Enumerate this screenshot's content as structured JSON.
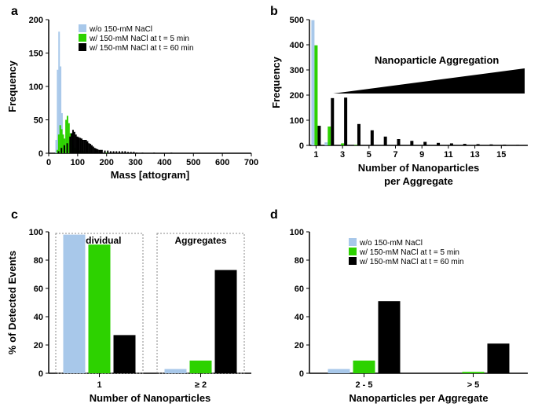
{
  "colors": {
    "series_noNaCl": "#a8c8ea",
    "series_5min": "#2dd200",
    "series_60min": "#000000",
    "axis": "#000000",
    "bg": "#ffffff"
  },
  "legend": {
    "noNaCl": "w/o 150-mM NaCl",
    "t5": "w/ 150-mM NaCl at t = 5 min",
    "t60": "w/ 150-mM NaCl at t = 60 min"
  },
  "panel_a": {
    "label": "a",
    "xlabel": "Mass [attogram]",
    "ylabel": "Frequency",
    "xlim": [
      0,
      700
    ],
    "ylim": [
      0,
      200
    ],
    "xticks": [
      0,
      100,
      200,
      300,
      400,
      500,
      600,
      700
    ],
    "yticks": [
      0,
      50,
      100,
      150,
      200
    ],
    "series": {
      "noNaCl": [
        {
          "x": 30,
          "y": 20
        },
        {
          "x": 35,
          "y": 125
        },
        {
          "x": 40,
          "y": 182
        },
        {
          "x": 45,
          "y": 130
        },
        {
          "x": 50,
          "y": 60
        },
        {
          "x": 55,
          "y": 22
        },
        {
          "x": 60,
          "y": 10
        },
        {
          "x": 65,
          "y": 5
        },
        {
          "x": 70,
          "y": 3
        },
        {
          "x": 75,
          "y": 2
        },
        {
          "x": 80,
          "y": 2
        },
        {
          "x": 85,
          "y": 1
        },
        {
          "x": 90,
          "y": 1
        }
      ],
      "t5": [
        {
          "x": 30,
          "y": 5
        },
        {
          "x": 35,
          "y": 28
        },
        {
          "x": 40,
          "y": 42
        },
        {
          "x": 45,
          "y": 36
        },
        {
          "x": 50,
          "y": 28
        },
        {
          "x": 55,
          "y": 22
        },
        {
          "x": 60,
          "y": 50
        },
        {
          "x": 65,
          "y": 56
        },
        {
          "x": 70,
          "y": 45
        },
        {
          "x": 75,
          "y": 30
        },
        {
          "x": 80,
          "y": 18
        },
        {
          "x": 85,
          "y": 12
        },
        {
          "x": 90,
          "y": 8
        },
        {
          "x": 95,
          "y": 6
        },
        {
          "x": 100,
          "y": 4
        },
        {
          "x": 105,
          "y": 4
        },
        {
          "x": 110,
          "y": 3
        },
        {
          "x": 120,
          "y": 3
        },
        {
          "x": 130,
          "y": 2
        },
        {
          "x": 140,
          "y": 2
        },
        {
          "x": 160,
          "y": 1
        },
        {
          "x": 180,
          "y": 1
        },
        {
          "x": 200,
          "y": 1
        }
      ],
      "t60": [
        {
          "x": 30,
          "y": 3
        },
        {
          "x": 40,
          "y": 8
        },
        {
          "x": 50,
          "y": 12
        },
        {
          "x": 60,
          "y": 15
        },
        {
          "x": 70,
          "y": 25
        },
        {
          "x": 75,
          "y": 30
        },
        {
          "x": 80,
          "y": 35
        },
        {
          "x": 85,
          "y": 32
        },
        {
          "x": 90,
          "y": 28
        },
        {
          "x": 95,
          "y": 25
        },
        {
          "x": 100,
          "y": 24
        },
        {
          "x": 105,
          "y": 23
        },
        {
          "x": 110,
          "y": 22
        },
        {
          "x": 115,
          "y": 20
        },
        {
          "x": 120,
          "y": 20
        },
        {
          "x": 125,
          "y": 20
        },
        {
          "x": 130,
          "y": 18
        },
        {
          "x": 135,
          "y": 15
        },
        {
          "x": 140,
          "y": 14
        },
        {
          "x": 145,
          "y": 12
        },
        {
          "x": 150,
          "y": 10
        },
        {
          "x": 155,
          "y": 8
        },
        {
          "x": 160,
          "y": 7
        },
        {
          "x": 165,
          "y": 6
        },
        {
          "x": 170,
          "y": 5
        },
        {
          "x": 175,
          "y": 5
        },
        {
          "x": 180,
          "y": 5
        },
        {
          "x": 190,
          "y": 4
        },
        {
          "x": 200,
          "y": 4
        },
        {
          "x": 210,
          "y": 3
        },
        {
          "x": 220,
          "y": 3
        },
        {
          "x": 230,
          "y": 3
        },
        {
          "x": 240,
          "y": 3
        },
        {
          "x": 250,
          "y": 3
        },
        {
          "x": 260,
          "y": 3
        },
        {
          "x": 270,
          "y": 2
        },
        {
          "x": 280,
          "y": 2
        },
        {
          "x": 290,
          "y": 2
        },
        {
          "x": 300,
          "y": 1
        },
        {
          "x": 320,
          "y": 1
        },
        {
          "x": 360,
          "y": 1
        },
        {
          "x": 420,
          "y": 1
        }
      ]
    }
  },
  "panel_b": {
    "label": "b",
    "xlabel": "Number of Nanoparticles",
    "xlabel2": "per Aggregate",
    "ylabel": "Frequency",
    "xlim": [
      0.5,
      17
    ],
    "ylim": [
      0,
      500
    ],
    "xticks": [
      1,
      3,
      5,
      7,
      9,
      11,
      13,
      15
    ],
    "yticks": [
      0,
      100,
      200,
      300,
      400,
      500
    ],
    "annotation": "Nanoparticle Aggregation",
    "series": {
      "noNaCl": [
        {
          "x": 1,
          "y": 498
        },
        {
          "x": 2,
          "y": 12
        }
      ],
      "t5": [
        {
          "x": 1,
          "y": 398
        },
        {
          "x": 2,
          "y": 75
        },
        {
          "x": 3,
          "y": 8
        },
        {
          "x": 4,
          "y": 2
        }
      ],
      "t60": [
        {
          "x": 1,
          "y": 78
        },
        {
          "x": 2,
          "y": 188
        },
        {
          "x": 3,
          "y": 190
        },
        {
          "x": 4,
          "y": 85
        },
        {
          "x": 5,
          "y": 60
        },
        {
          "x": 6,
          "y": 35
        },
        {
          "x": 7,
          "y": 25
        },
        {
          "x": 8,
          "y": 18
        },
        {
          "x": 9,
          "y": 14
        },
        {
          "x": 10,
          "y": 10
        },
        {
          "x": 11,
          "y": 8
        },
        {
          "x": 12,
          "y": 6
        },
        {
          "x": 13,
          "y": 5
        },
        {
          "x": 14,
          "y": 4
        },
        {
          "x": 15,
          "y": 3
        },
        {
          "x": 16,
          "y": 2
        }
      ]
    }
  },
  "panel_c": {
    "label": "c",
    "xlabel": "Number of Nanoparticles",
    "ylabel": "% of Detected Events",
    "ylim": [
      0,
      100
    ],
    "yticks": [
      0,
      20,
      40,
      60,
      80,
      100
    ],
    "groups": [
      {
        "label": "1",
        "box_label": "Individual",
        "values": {
          "noNaCl": 98,
          "t5": 91,
          "t60": 27
        }
      },
      {
        "label": "≥ 2",
        "box_label": "Aggregates",
        "values": {
          "noNaCl": 3,
          "t5": 9,
          "t60": 73
        }
      }
    ]
  },
  "panel_d": {
    "label": "d",
    "xlabel": "Nanoparticles per Aggregate",
    "ylabel": "",
    "ylim": [
      0,
      100
    ],
    "yticks": [
      0,
      20,
      40,
      60,
      80,
      100
    ],
    "groups": [
      {
        "label": "2 - 5",
        "values": {
          "noNaCl": 3,
          "t5": 9,
          "t60": 51
        }
      },
      {
        "label": "> 5",
        "values": {
          "noNaCl": 0,
          "t5": 1,
          "t60": 21
        }
      }
    ]
  }
}
